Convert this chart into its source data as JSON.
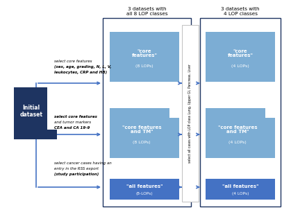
{
  "bg_color": "#ffffff",
  "dark_blue": "#1e3461",
  "mid_blue": "#4472c4",
  "light_blue": "#7cadd4",
  "box_border": "#1e3461",
  "group1_title": "3 datasets with\nall 8 LOP classes",
  "group2_title": "3 datasets with\n4 LOP classes",
  "vertical_label": "select all cases with LOP class Lung, Upper GI, Pancreas, Liver",
  "ann_top_line1": "select core features",
  "ann_top_line2": "(sex, age, grading, N, L, V,",
  "ann_top_line3": "leukocytes, CRP and HB)",
  "ann_mid_line1": "select core features",
  "ann_mid_line2": "and tumor markers",
  "ann_mid_line3": "CEA and CA 19-9",
  "ann_bot_line1": "select cancer cases having an",
  "ann_bot_line2": "entry in the RSS export",
  "ann_bot_line3": "(study participation)"
}
